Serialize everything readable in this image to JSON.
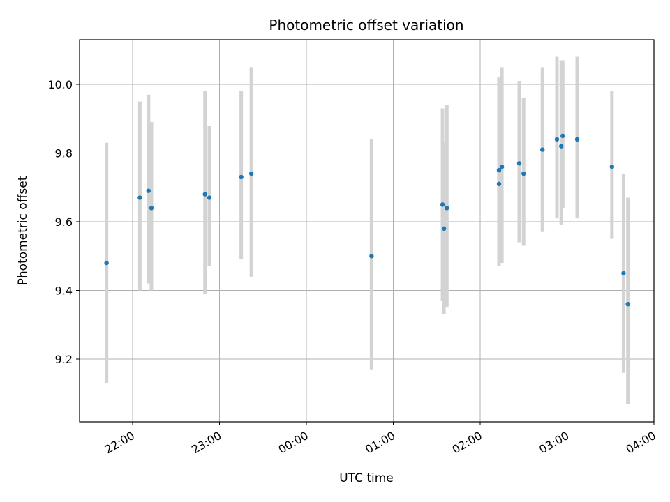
{
  "chart_data": {
    "type": "scatter",
    "title": "Photometric offset variation",
    "xlabel": "UTC time",
    "ylabel": "Photometric offset",
    "x_ticks": [
      "22:00",
      "23:00",
      "00:00",
      "01:00",
      "02:00",
      "03:00",
      "04:00"
    ],
    "y_ticks": [
      "9.2",
      "9.4",
      "9.6",
      "9.8",
      "10.0"
    ],
    "grid": true,
    "marker_color": "#1f77b4",
    "errorbar_color": "#d3d3d3",
    "points": [
      {
        "x": "21:42",
        "y": 9.48,
        "low": 9.13,
        "high": 9.83
      },
      {
        "x": "22:05",
        "y": 9.67,
        "low": 9.4,
        "high": 9.95
      },
      {
        "x": "22:11",
        "y": 9.69,
        "low": 9.42,
        "high": 9.97
      },
      {
        "x": "22:13",
        "y": 9.64,
        "low": 9.4,
        "high": 9.89
      },
      {
        "x": "22:50",
        "y": 9.68,
        "low": 9.39,
        "high": 9.98
      },
      {
        "x": "22:53",
        "y": 9.67,
        "low": 9.47,
        "high": 9.88
      },
      {
        "x": "23:15",
        "y": 9.73,
        "low": 9.49,
        "high": 9.98
      },
      {
        "x": "23:22",
        "y": 9.74,
        "low": 9.44,
        "high": 10.05
      },
      {
        "x": "00:45",
        "y": 9.5,
        "low": 9.17,
        "high": 9.84
      },
      {
        "x": "01:34",
        "y": 9.65,
        "low": 9.37,
        "high": 9.93
      },
      {
        "x": "01:35",
        "y": 9.58,
        "low": 9.33,
        "high": 9.83
      },
      {
        "x": "01:37",
        "y": 9.64,
        "low": 9.35,
        "high": 9.94
      },
      {
        "x": "02:13",
        "y": 9.75,
        "low": 9.49,
        "high": 10.02
      },
      {
        "x": "02:13",
        "y": 9.71,
        "low": 9.47,
        "high": 9.95
      },
      {
        "x": "02:15",
        "y": 9.76,
        "low": 9.48,
        "high": 10.05
      },
      {
        "x": "02:27",
        "y": 9.77,
        "low": 9.54,
        "high": 10.01
      },
      {
        "x": "02:30",
        "y": 9.74,
        "low": 9.53,
        "high": 9.96
      },
      {
        "x": "02:43",
        "y": 9.81,
        "low": 9.57,
        "high": 10.05
      },
      {
        "x": "02:53",
        "y": 9.84,
        "low": 9.61,
        "high": 10.08
      },
      {
        "x": "02:56",
        "y": 9.82,
        "low": 9.59,
        "high": 10.07
      },
      {
        "x": "02:57",
        "y": 9.85,
        "low": 9.64,
        "high": 10.07
      },
      {
        "x": "03:07",
        "y": 9.84,
        "low": 9.61,
        "high": 10.08
      },
      {
        "x": "03:31",
        "y": 9.76,
        "low": 9.55,
        "high": 9.98
      },
      {
        "x": "03:39",
        "y": 9.45,
        "low": 9.16,
        "high": 9.74
      },
      {
        "x": "03:42",
        "y": 9.36,
        "low": 9.07,
        "high": 9.67
      }
    ]
  }
}
